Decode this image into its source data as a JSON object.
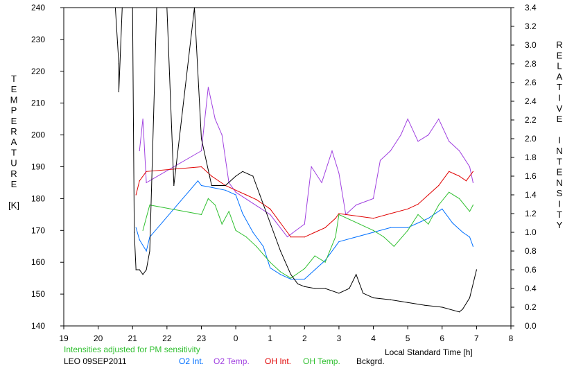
{
  "chart_data": {
    "type": "line",
    "title": "",
    "xlabel": "Local Standard Time [h]",
    "ylabel_left_letters": [
      "T",
      "E",
      "M",
      "P",
      "E",
      "R",
      "A",
      "T",
      "U",
      "R",
      "E",
      "",
      "[K]"
    ],
    "ylabel_right_letters": [
      "R",
      "E",
      "L",
      "A",
      "T",
      "I",
      "V",
      "E",
      "",
      "I",
      "N",
      "T",
      "E",
      "N",
      "S",
      "I",
      "T",
      "Y"
    ],
    "x_range_hours": [
      19,
      32
    ],
    "x_tick_labels": [
      "19",
      "20",
      "21",
      "22",
      "23",
      "0",
      "1",
      "2",
      "3",
      "4",
      "5",
      "6",
      "7",
      "8"
    ],
    "ylim_left": [
      140,
      240
    ],
    "y_left_ticks": [
      "140",
      "150",
      "160",
      "170",
      "180",
      "190",
      "200",
      "210",
      "220",
      "230",
      "240"
    ],
    "ylim_right": [
      0.0,
      3.4
    ],
    "y_right_ticks": [
      "0.0",
      "0.2",
      "0.4",
      "0.6",
      "0.8",
      "1.0",
      "1.2",
      "1.4",
      "1.6",
      "1.8",
      "2.0",
      "2.2",
      "2.4",
      "2.6",
      "2.8",
      "3.0",
      "3.2",
      "3.4"
    ],
    "note": "Intensities adjusted for PM sensitivity",
    "station": "LEO 09SEP2011",
    "legend_placement": "bottom",
    "series": [
      {
        "name": "O2 Int.",
        "axis": "right",
        "color": "#0070ff",
        "x": [
          21.1,
          21.2,
          21.4,
          21.5,
          22.9,
          23.0,
          23.3,
          23.7,
          24.0,
          24.2,
          24.5,
          24.8,
          25.0,
          25.3,
          25.6,
          26.0,
          26.3,
          26.6,
          26.9,
          27.0,
          28.0,
          28.5,
          29.0,
          29.3,
          29.6,
          29.8,
          30.0,
          30.3,
          30.6,
          30.8,
          30.9
        ],
        "y": [
          1.05,
          0.92,
          0.8,
          0.95,
          1.55,
          1.5,
          1.48,
          1.45,
          1.4,
          1.2,
          1.0,
          0.85,
          0.62,
          0.55,
          0.5,
          0.5,
          0.6,
          0.7,
          0.85,
          0.9,
          1.0,
          1.05,
          1.05,
          1.1,
          1.15,
          1.2,
          1.25,
          1.1,
          1.0,
          0.95,
          0.85
        ]
      },
      {
        "name": "O2 Temp.",
        "axis": "left",
        "color": "#a040e0",
        "x": [
          21.2,
          21.3,
          21.4,
          23.0,
          23.2,
          23.4,
          23.6,
          23.8,
          24.0,
          25.0,
          25.5,
          26.0,
          26.2,
          26.5,
          26.8,
          27.0,
          27.2,
          27.5,
          28.0,
          28.2,
          28.5,
          28.8,
          29.0,
          29.3,
          29.6,
          29.9,
          30.2,
          30.5,
          30.8,
          30.9
        ],
        "y": [
          195,
          205,
          185,
          195,
          215,
          205,
          200,
          185,
          182,
          175,
          168,
          172,
          190,
          185,
          195,
          188,
          175,
          178,
          180,
          192,
          195,
          200,
          205,
          198,
          200,
          205,
          198,
          195,
          190,
          185
        ]
      },
      {
        "name": "OH Int.",
        "axis": "right",
        "color": "#e00000",
        "x": [
          21.1,
          21.2,
          21.4,
          23.0,
          23.3,
          23.7,
          24.0,
          24.3,
          24.6,
          25.0,
          25.3,
          25.6,
          26.0,
          26.3,
          26.6,
          26.9,
          27.0,
          28.0,
          28.5,
          29.0,
          29.3,
          29.6,
          29.9,
          30.2,
          30.5,
          30.7,
          30.9
        ],
        "y": [
          1.4,
          1.55,
          1.65,
          1.7,
          1.6,
          1.5,
          1.45,
          1.4,
          1.35,
          1.25,
          1.1,
          0.95,
          0.95,
          1.0,
          1.05,
          1.15,
          1.2,
          1.15,
          1.2,
          1.25,
          1.3,
          1.4,
          1.5,
          1.65,
          1.6,
          1.55,
          1.65
        ]
      },
      {
        "name": "OH Temp.",
        "axis": "left",
        "color": "#30c030",
        "x": [
          21.3,
          21.5,
          23.0,
          23.2,
          23.4,
          23.6,
          23.8,
          24.0,
          24.3,
          24.6,
          25.0,
          25.3,
          25.6,
          26.0,
          26.3,
          26.6,
          26.9,
          27.0,
          28.0,
          28.3,
          28.6,
          29.0,
          29.3,
          29.6,
          29.9,
          30.2,
          30.5,
          30.8,
          30.9
        ],
        "y": [
          170,
          178,
          175,
          180,
          178,
          172,
          176,
          170,
          168,
          165,
          160,
          157,
          155,
          158,
          162,
          160,
          168,
          175,
          170,
          168,
          165,
          170,
          175,
          172,
          178,
          182,
          180,
          176,
          178
        ]
      },
      {
        "name": "Bckgrd.",
        "axis": "right",
        "color": "#000000",
        "x": [
          20.5,
          20.6,
          20.6,
          20.7,
          21.0,
          21.05,
          21.1,
          21.2,
          21.3,
          21.4,
          21.5,
          21.7,
          22.0,
          22.2,
          22.8,
          23.0,
          23.3,
          23.7,
          24.0,
          24.2,
          24.5,
          24.7,
          25.0,
          25.3,
          25.6,
          25.8,
          26.0,
          26.3,
          26.6,
          27.0,
          27.3,
          27.5,
          27.7,
          28.0,
          28.5,
          29.0,
          29.5,
          30.0,
          30.5,
          30.6,
          30.8,
          31.0
        ],
        "y": [
          3.4,
          2.8,
          2.5,
          3.4,
          3.4,
          1.0,
          0.6,
          0.6,
          0.55,
          0.6,
          0.8,
          3.4,
          3.4,
          1.5,
          3.4,
          2.0,
          1.5,
          1.5,
          1.6,
          1.65,
          1.6,
          1.4,
          1.1,
          0.8,
          0.55,
          0.45,
          0.42,
          0.4,
          0.4,
          0.35,
          0.4,
          0.55,
          0.35,
          0.3,
          0.28,
          0.25,
          0.22,
          0.2,
          0.15,
          0.18,
          0.3,
          0.6
        ]
      }
    ]
  }
}
